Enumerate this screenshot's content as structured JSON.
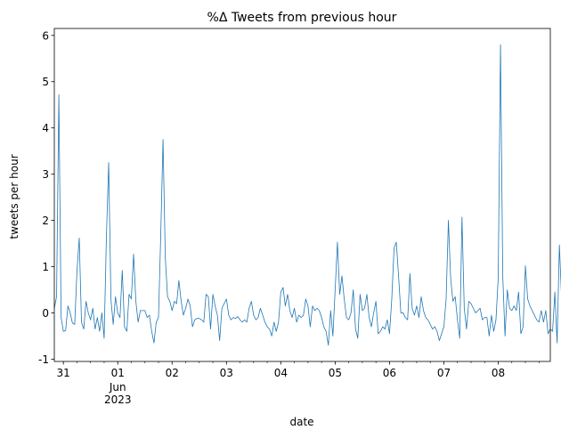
{
  "chart_data": {
    "type": "line",
    "title": "%Δ Tweets from previous hour",
    "xlabel": "date",
    "ylabel": "tweets per hour",
    "ylim": [
      -1.05,
      6.15
    ],
    "y_ticks": [
      -1,
      0,
      1,
      2,
      3,
      4,
      5,
      6
    ],
    "x_range": [
      "2023-05-30 20:00",
      "2023-06-08 23:00"
    ],
    "x_ticks": [
      {
        "date": "2023-05-31",
        "label": "31",
        "sublabels": []
      },
      {
        "date": "2023-06-01",
        "label": "01",
        "sublabels": [
          "Jun",
          "2023"
        ]
      },
      {
        "date": "2023-06-02",
        "label": "02",
        "sublabels": []
      },
      {
        "date": "2023-06-03",
        "label": "03",
        "sublabels": []
      },
      {
        "date": "2023-06-04",
        "label": "04",
        "sublabels": []
      },
      {
        "date": "2023-06-05",
        "label": "05",
        "sublabels": []
      },
      {
        "date": "2023-06-06",
        "label": "06",
        "sublabels": []
      },
      {
        "date": "2023-06-07",
        "label": "07",
        "sublabels": []
      },
      {
        "date": "2023-06-08",
        "label": "08",
        "sublabels": []
      }
    ],
    "grid": false,
    "line_color": "#1f77b4",
    "series": [
      {
        "start": "2023-05-30 20:00",
        "interval": "1 hour",
        "values": [
          0.1,
          0.35,
          4.72,
          -0.1,
          -0.4,
          -0.38,
          0.15,
          0.0,
          -0.22,
          -0.25,
          0.9,
          1.62,
          -0.2,
          -0.35,
          0.25,
          0.0,
          -0.15,
          0.1,
          -0.35,
          -0.1,
          -0.4,
          0.0,
          -0.55,
          1.65,
          3.25,
          0.3,
          -0.25,
          0.35,
          0.0,
          -0.1,
          0.92,
          -0.3,
          -0.4,
          0.4,
          0.3,
          1.27,
          0.25,
          -0.2,
          0.05,
          0.05,
          0.05,
          -0.1,
          -0.05,
          -0.4,
          -0.65,
          -0.2,
          -0.1,
          1.7,
          3.75,
          1.2,
          0.35,
          0.25,
          0.05,
          0.25,
          0.2,
          0.7,
          0.25,
          -0.05,
          0.1,
          0.3,
          0.15,
          -0.3,
          -0.15,
          -0.12,
          -0.12,
          -0.15,
          -0.2,
          0.4,
          0.35,
          -0.35,
          0.4,
          0.15,
          -0.05,
          -0.6,
          0.1,
          0.2,
          0.3,
          -0.05,
          -0.15,
          -0.1,
          -0.12,
          -0.08,
          -0.15,
          -0.2,
          -0.15,
          -0.2,
          0.1,
          0.25,
          -0.05,
          -0.15,
          -0.1,
          0.1,
          -0.05,
          -0.2,
          -0.3,
          -0.35,
          -0.5,
          -0.2,
          -0.4,
          -0.2,
          0.45,
          0.55,
          0.15,
          0.4,
          0.05,
          -0.1,
          0.1,
          -0.2,
          -0.05,
          -0.1,
          -0.05,
          0.3,
          0.15,
          -0.3,
          0.15,
          0.05,
          0.1,
          0.05,
          -0.1,
          -0.3,
          -0.4,
          -0.7,
          0.05,
          -0.5,
          0.5,
          1.53,
          0.4,
          0.8,
          0.3,
          -0.1,
          -0.15,
          0.0,
          0.5,
          -0.35,
          -0.55,
          0.4,
          0.05,
          0.1,
          0.4,
          -0.1,
          -0.3,
          0.0,
          0.25,
          -0.45,
          -0.4,
          -0.3,
          -0.35,
          -0.15,
          -0.45,
          0.3,
          1.4,
          1.53,
          0.8,
          0.0,
          0.0,
          -0.1,
          -0.15,
          0.85,
          0.1,
          -0.05,
          0.15,
          -0.1,
          0.35,
          0.05,
          -0.1,
          -0.15,
          -0.25,
          -0.35,
          -0.3,
          -0.4,
          -0.6,
          -0.45,
          -0.3,
          0.3,
          2.0,
          0.75,
          0.25,
          0.35,
          -0.15,
          -0.55,
          2.07,
          0.1,
          -0.35,
          0.25,
          0.2,
          0.1,
          0.0,
          0.05,
          0.1,
          -0.15,
          -0.1,
          -0.1,
          -0.5,
          -0.05,
          -0.4,
          -0.15,
          0.75,
          5.8,
          0.8,
          -0.5,
          0.5,
          0.1,
          0.05,
          0.15,
          0.05,
          0.45,
          -0.45,
          -0.3,
          1.02,
          0.3,
          0.15,
          0.05,
          -0.05,
          -0.15,
          -0.2,
          0.05,
          -0.2,
          0.05,
          -0.45,
          -0.35,
          -0.4,
          0.45,
          -0.65,
          1.47,
          0.3,
          0.65,
          -0.1,
          -0.05
        ]
      }
    ]
  }
}
